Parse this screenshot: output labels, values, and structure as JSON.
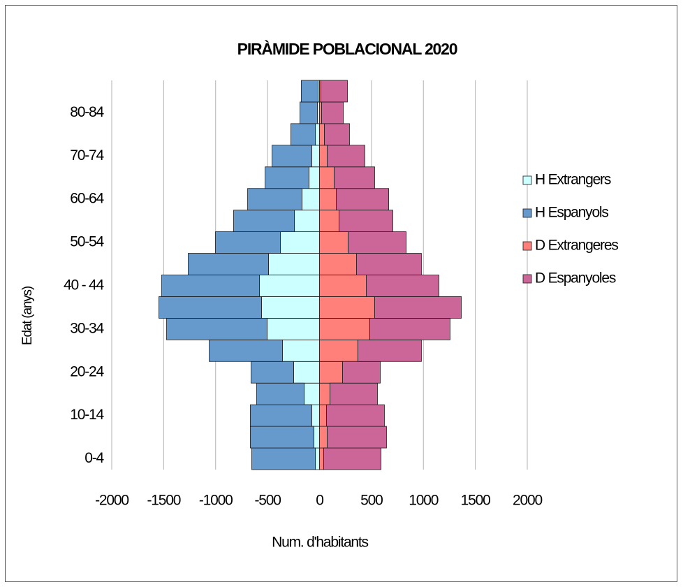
{
  "chart_data": {
    "type": "bar",
    "orientation": "horizontal",
    "stacked": true,
    "title": "PIRÀMIDE POBLACIONAL 2020",
    "xlabel": "Num. d'habitants",
    "ylabel": "Edat (anys)",
    "categories": [
      "0-4",
      null,
      "10-14",
      null,
      "20-24",
      null,
      "30-34",
      null,
      "40 - 44",
      null,
      "50-54",
      null,
      "60-64",
      null,
      "70-74",
      null,
      "80-84",
      null
    ],
    "series": [
      {
        "name": "H Extrangers",
        "color": "#ccffff",
        "values": [
          -40,
          -54,
          -74,
          -148,
          -249,
          -356,
          -504,
          -558,
          -578,
          -491,
          -376,
          -242,
          -168,
          -101,
          -74,
          -40,
          -20,
          -13
        ]
      },
      {
        "name": "H Espanyols",
        "color": "#6699cc",
        "values": [
          -612,
          -612,
          -592,
          -457,
          -410,
          -706,
          -968,
          -988,
          -941,
          -773,
          -626,
          -585,
          -524,
          -423,
          -383,
          -236,
          -168,
          -162
        ]
      },
      {
        "name": "D Extrangeres",
        "color": "#ff7f7a",
        "values": [
          40,
          74,
          67,
          101,
          222,
          370,
          484,
          531,
          450,
          356,
          276,
          188,
          161,
          141,
          74,
          47,
          20,
          13
        ]
      },
      {
        "name": "D Espanyoles",
        "color": "#cc6699",
        "values": [
          552,
          571,
          558,
          457,
          363,
          611,
          773,
          834,
          700,
          625,
          558,
          518,
          505,
          390,
          363,
          242,
          209,
          256
        ]
      }
    ],
    "xlim": [
      -2000,
      2000
    ],
    "xticks": [
      -2000,
      -1500,
      -1000,
      -500,
      0,
      500,
      1000,
      1500,
      2000
    ],
    "grid": true,
    "legend": "right"
  }
}
